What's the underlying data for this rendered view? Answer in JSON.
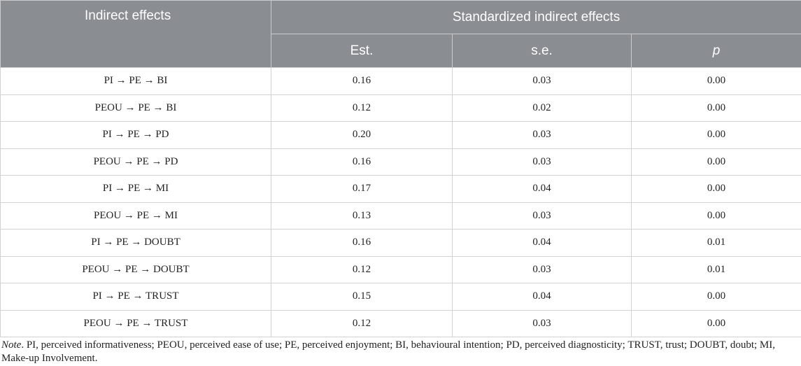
{
  "table": {
    "header": {
      "indirect_effects": "Indirect effects",
      "standardized": "Standardized indirect effects",
      "est": "Est.",
      "se": "s.e.",
      "p": "p"
    },
    "rows": [
      {
        "path": "PI → PE → BI",
        "est": "0.16",
        "se": "0.03",
        "p": "0.00"
      },
      {
        "path": "PEOU → PE → BI",
        "est": "0.12",
        "se": "0.02",
        "p": "0.00"
      },
      {
        "path": "PI → PE → PD",
        "est": "0.20",
        "se": "0.03",
        "p": "0.00"
      },
      {
        "path": "PEOU → PE → PD",
        "est": "0.16",
        "se": "0.03",
        "p": "0.00"
      },
      {
        "path": "PI → PE → MI",
        "est": "0.17",
        "se": "0.04",
        "p": "0.00"
      },
      {
        "path": "PEOU → PE → MI",
        "est": "0.13",
        "se": "0.03",
        "p": "0.00"
      },
      {
        "path": "PI → PE → DOUBT",
        "est": "0.16",
        "se": "0.04",
        "p": "0.01"
      },
      {
        "path": "PEOU → PE → DOUBT",
        "est": "0.12",
        "se": "0.03",
        "p": "0.01"
      },
      {
        "path": "PI → PE → TRUST",
        "est": "0.15",
        "se": "0.04",
        "p": "0.00"
      },
      {
        "path": "PEOU → PE → TRUST",
        "est": "0.12",
        "se": "0.03",
        "p": "0.00"
      }
    ]
  },
  "note": {
    "label": "Note",
    "text": ". PI, perceived informativeness; PEOU, perceived ease of use; PE, perceived enjoyment; BI, behavioural intention; PD, perceived diagnosticity; TRUST, trust; DOUBT, doubt; MI, Make-up Involvement."
  }
}
